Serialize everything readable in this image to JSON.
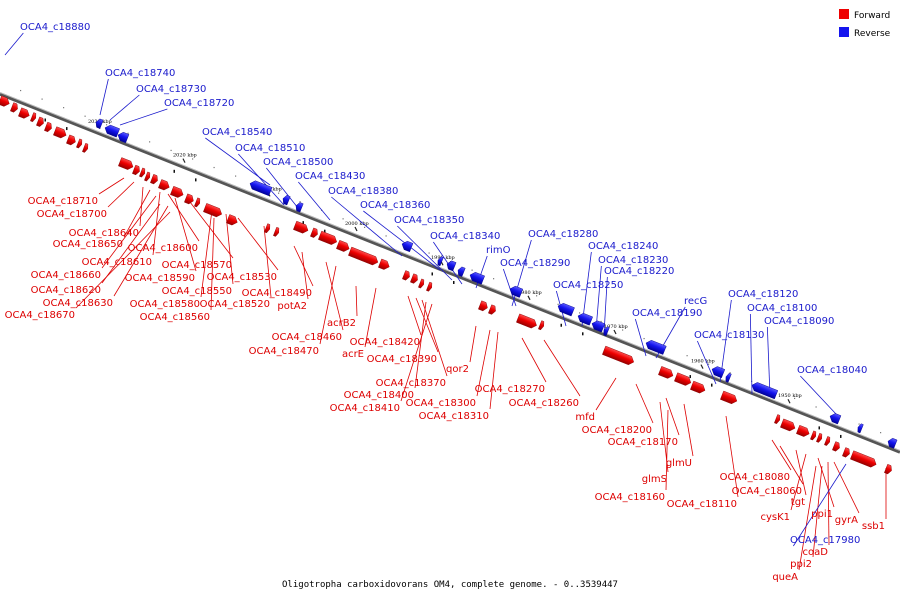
{
  "caption": "Oligotropha carboxidovorans OM4, complete genome. - 0..3539447",
  "legend": {
    "forward": {
      "label": "Forward",
      "color": "#ee0000"
    },
    "reverse": {
      "label": "Reverse",
      "color": "#1515ee"
    }
  },
  "ticks": [
    "2030 kbp",
    "2020 kbp",
    "2010 kbp",
    "2000 kbp",
    "1990 kbp",
    "1980 kbp",
    "1970 kbp",
    "1960 kbp",
    "1950 kbp"
  ],
  "forward_labels": [
    "OCA4_c18710",
    "OCA4_c18700",
    "OCA4_c18640",
    "OCA4_c18650",
    "OCA4_c18610",
    "OCA4_c18600",
    "OCA4_c18660",
    "OCA4_c18590",
    "OCA4_c18570",
    "OCA4_c18620",
    "OCA4_c18630",
    "OCA4_c18580",
    "OCA4_c18550",
    "OCA4_c18530",
    "OCA4_c18670",
    "OCA4_c18560",
    "OCA4_c18520",
    "OCA4_c18490",
    "potA2",
    "OCA4_c18460",
    "OCA4_c18470",
    "acrB2",
    "acrE",
    "OCA4_c18420",
    "OCA4_c18390",
    "OCA4_c18370",
    "OCA4_c18400",
    "OCA4_c18410",
    "qor2",
    "OCA4_c18300",
    "OCA4_c18310",
    "OCA4_c18270",
    "OCA4_c18260",
    "mfd",
    "OCA4_c18200",
    "OCA4_c18170",
    "glmU",
    "glmS",
    "OCA4_c18160",
    "OCA4_c18110",
    "OCA4_c18080",
    "OCA4_c18060",
    "tgt",
    "cysK1",
    "ppi1",
    "gyrA",
    "coaD",
    "ssb1",
    "ppi2",
    "queA"
  ],
  "reverse_labels": [
    "OCA4_c18880",
    "OCA4_c18740",
    "OCA4_c18730",
    "OCA4_c18720",
    "OCA4_c18540",
    "OCA4_c18510",
    "OCA4_c18500",
    "OCA4_c18430",
    "OCA4_c18380",
    "OCA4_c18360",
    "OCA4_c18350",
    "OCA4_c18340",
    "rimO",
    "OCA4_c18290",
    "OCA4_c18280",
    "OCA4_c18240",
    "OCA4_c18230",
    "OCA4_c18220",
    "OCA4_c18250",
    "recG",
    "OCA4_c18190",
    "OCA4_c18130",
    "OCA4_c18120",
    "OCA4_c18100",
    "OCA4_c18090",
    "OCA4_c18040",
    "OCA4_c17980"
  ]
}
